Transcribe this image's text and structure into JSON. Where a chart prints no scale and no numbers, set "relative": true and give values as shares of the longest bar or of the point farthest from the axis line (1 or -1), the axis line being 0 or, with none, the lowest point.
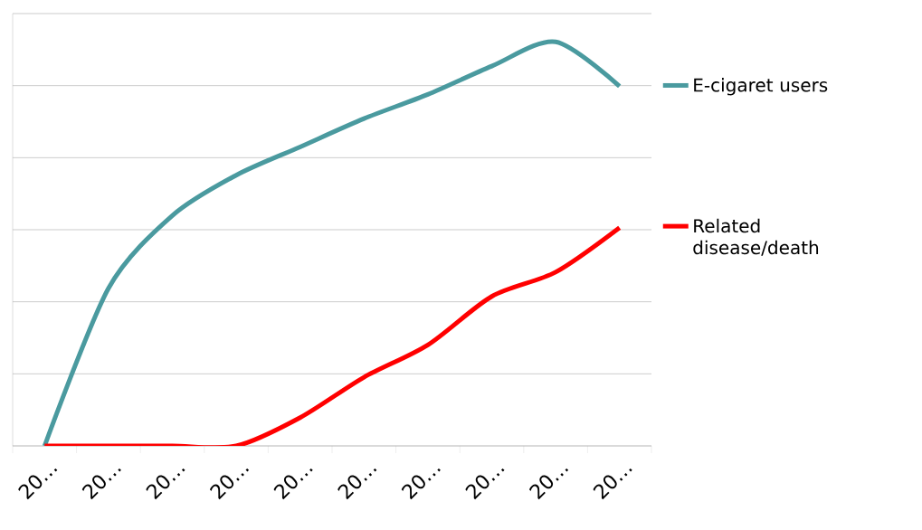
{
  "chart_data": {
    "type": "line",
    "relative": true,
    "categories": [
      "20…",
      "20…",
      "20…",
      "20…",
      "20…",
      "20…",
      "20…",
      "20…",
      "20…",
      "20…"
    ],
    "series": [
      {
        "name": "E-cigaret users",
        "color": "#4a9a9f",
        "values": [
          0,
          0.39,
          0.57,
          0.67,
          0.74,
          0.81,
          0.87,
          0.94,
          1,
          0.89
        ]
      },
      {
        "name": "Related disease/death",
        "color": "#ff0000",
        "values": [
          0,
          0,
          0,
          0,
          0.07,
          0.17,
          0.25,
          0.37,
          0.43,
          0.54
        ]
      }
    ],
    "grid": "y",
    "legend": "right",
    "marker": "none",
    "line_style": "solid"
  }
}
